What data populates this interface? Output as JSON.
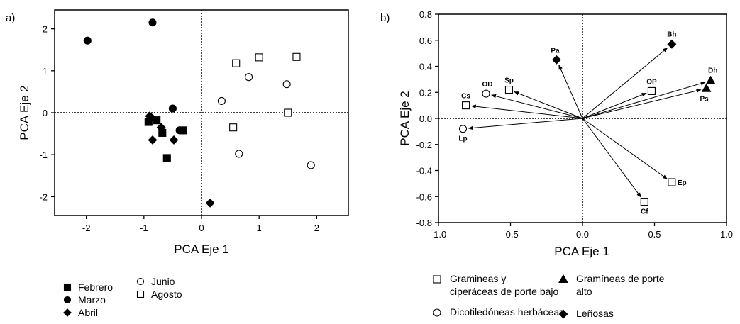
{
  "chart_data": [
    {
      "panel_label": "a)",
      "type": "scatter",
      "xlabel": "PCA Eje 1",
      "ylabel": "PCA Eje 2",
      "xlim": [
        -2.55,
        2.55
      ],
      "ylim": [
        -2.45,
        2.45
      ],
      "xticks": [
        -2,
        -1,
        0,
        1,
        2
      ],
      "yticks": [
        -2,
        -1,
        0,
        1,
        2
      ],
      "zero_lines": "dotted",
      "legend_position": "bottom",
      "series": [
        {
          "name": "Febrero",
          "marker": "filled-square",
          "points": [
            [
              -0.92,
              -0.22
            ],
            [
              -0.78,
              -0.18
            ],
            [
              -0.68,
              -0.48
            ],
            [
              -0.32,
              -0.42
            ],
            [
              -0.6,
              -1.08
            ]
          ]
        },
        {
          "name": "Marzo",
          "marker": "filled-circle",
          "points": [
            [
              -1.98,
              1.72
            ],
            [
              -0.85,
              2.15
            ],
            [
              -0.5,
              0.1
            ],
            [
              -0.88,
              -0.12
            ],
            [
              -0.38,
              -0.42
            ]
          ]
        },
        {
          "name": "Abril",
          "marker": "filled-diamond",
          "points": [
            [
              -0.9,
              -0.08
            ],
            [
              -0.7,
              -0.35
            ],
            [
              -0.85,
              -0.65
            ],
            [
              -0.48,
              -0.65
            ],
            [
              0.15,
              -2.15
            ]
          ]
        },
        {
          "name": "Junio",
          "marker": "open-circle",
          "points": [
            [
              0.82,
              0.85
            ],
            [
              1.48,
              0.68
            ],
            [
              0.35,
              0.28
            ],
            [
              0.65,
              -0.98
            ],
            [
              1.9,
              -1.25
            ]
          ]
        },
        {
          "name": "Agosto",
          "marker": "open-square",
          "points": [
            [
              0.6,
              1.18
            ],
            [
              1.0,
              1.32
            ],
            [
              1.65,
              1.33
            ],
            [
              1.5,
              0.0
            ],
            [
              0.55,
              -0.35
            ]
          ]
        }
      ]
    },
    {
      "panel_label": "b)",
      "type": "biplot",
      "xlabel": "PCA Eje 1",
      "ylabel": "PCA Eje 2",
      "xlim": [
        -1.0,
        1.0
      ],
      "ylim": [
        -0.8,
        0.8
      ],
      "xticks": [
        "-1.0",
        "-0.5",
        "0.0",
        "0.5",
        "1.0"
      ],
      "yticks": [
        "0.8",
        "0.6",
        "0.4",
        "0.2",
        "0.0",
        "-0.2",
        "-0.4",
        "-0.6",
        "-0.8"
      ],
      "zero_lines": "dotted",
      "legend_position": "bottom",
      "vectors": [
        {
          "label": "Pa",
          "x": -0.18,
          "y": 0.45,
          "marker": "filled-diamond"
        },
        {
          "label": "Bh",
          "x": 0.62,
          "y": 0.57,
          "marker": "filled-diamond"
        },
        {
          "label": "Sp",
          "x": -0.51,
          "y": 0.22,
          "marker": "open-square"
        },
        {
          "label": "OD",
          "x": -0.67,
          "y": 0.19,
          "marker": "open-circle"
        },
        {
          "label": "Cs",
          "x": -0.81,
          "y": 0.1,
          "marker": "open-square"
        },
        {
          "label": "Lp",
          "x": -0.83,
          "y": -0.08,
          "marker": "open-circle"
        },
        {
          "label": "OP",
          "x": 0.48,
          "y": 0.21,
          "marker": "open-square"
        },
        {
          "label": "Dh",
          "x": 0.89,
          "y": 0.29,
          "marker": "filled-triangle"
        },
        {
          "label": "Ps",
          "x": 0.86,
          "y": 0.23,
          "marker": "filled-triangle"
        },
        {
          "label": "Ep",
          "x": 0.62,
          "y": -0.49,
          "marker": "open-square"
        },
        {
          "label": "Cf",
          "x": 0.43,
          "y": -0.64,
          "marker": "open-square"
        }
      ],
      "legend": [
        {
          "marker": "open-square",
          "label_lines": [
            "Gramineas y",
            "ciperáceas de porte bajo"
          ]
        },
        {
          "marker": "filled-triangle",
          "label_lines": [
            "Gramíneas de porte",
            "alto"
          ]
        },
        {
          "marker": "open-circle",
          "label_lines": [
            "Dicotiledóneas herbáceas"
          ]
        },
        {
          "marker": "filled-diamond",
          "label_lines": [
            "Leñosas"
          ]
        }
      ]
    }
  ]
}
